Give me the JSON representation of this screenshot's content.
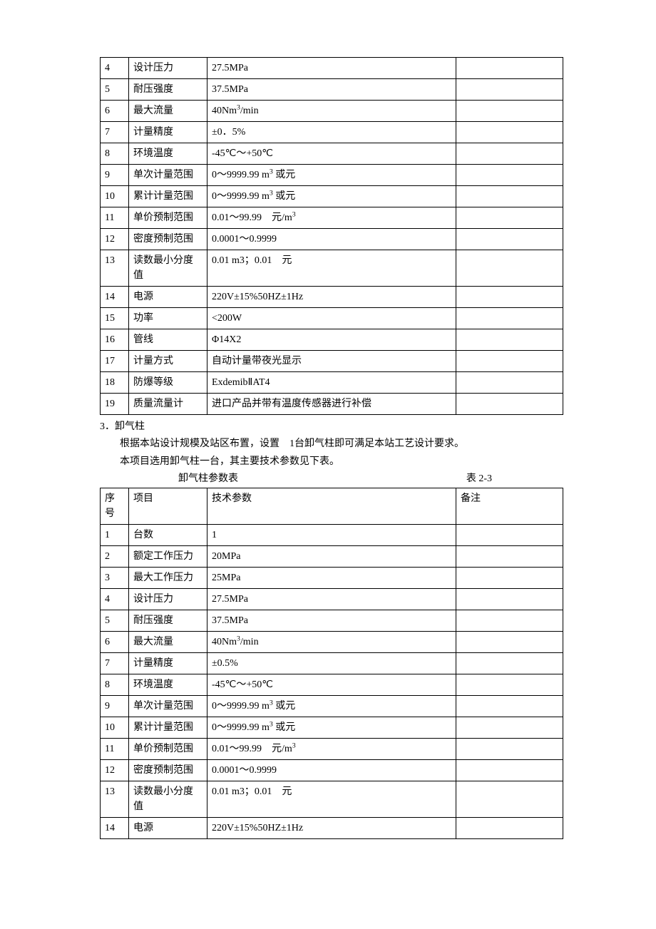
{
  "table1": {
    "columns": {
      "num_width": 40,
      "item_width": 110,
      "note_width": 150
    },
    "rows": [
      {
        "num": "4",
        "item": "设计压力",
        "param": "27.5MPa",
        "note": ""
      },
      {
        "num": "5",
        "item": "耐压强度",
        "param": "37.5MPa",
        "note": ""
      },
      {
        "num": "6",
        "item": "最大流量",
        "param_html": "40Nm<sup>3</sup>/min",
        "note": ""
      },
      {
        "num": "7",
        "item": "计量精度",
        "param": "±0．5%",
        "note": ""
      },
      {
        "num": "8",
        "item": "环境温度",
        "param": "-45℃～+50℃",
        "note": ""
      },
      {
        "num": "9",
        "item": "单次计量范围",
        "param_html": "0～9999.99 m<sup>3</sup> 或元",
        "note": ""
      },
      {
        "num": "10",
        "item": "累计计量范围",
        "param_html": "0～9999.99 m<sup>3</sup> 或元",
        "note": ""
      },
      {
        "num": "11",
        "item": "单价预制范围",
        "param_html": "0.01～99.99　元/m<sup>3</sup>",
        "note": ""
      },
      {
        "num": "12",
        "item": "密度预制范围",
        "param": "0.0001～0.9999",
        "note": ""
      },
      {
        "num": "13",
        "item": "读数最小分度值",
        "param": "0.01 m3；0.01　元",
        "note": ""
      },
      {
        "num": "14",
        "item": "电源",
        "param": "220V±15%50HZ±1Hz",
        "note": ""
      },
      {
        "num": "15",
        "item": "功率",
        "param": "<200W",
        "note": ""
      },
      {
        "num": "16",
        "item": "管线",
        "param": "Φ14X2",
        "note": ""
      },
      {
        "num": "17",
        "item": "计量方式",
        "param": "自动计量带夜光显示",
        "note": ""
      },
      {
        "num": "18",
        "item": "防爆等级",
        "param": "ExdemibⅡAT4",
        "note": ""
      },
      {
        "num": "19",
        "item": "质量流量计",
        "param": "进口产品并带有温度传感器进行补偿",
        "note": ""
      }
    ]
  },
  "section": {
    "title": "3．卸气柱",
    "para1": "根据本站设计规模及站区布置，设置　1台卸气柱即可满足本站工艺设计要求。",
    "para2": "本项目选用卸气柱一台，其主要技术参数见下表。",
    "caption_title": "卸气柱参数表",
    "caption_ref": "表 2-3"
  },
  "table2": {
    "header": {
      "num": "序号",
      "item": "项目",
      "param": "技术参数",
      "note": "备注"
    },
    "rows": [
      {
        "num": "1",
        "item": "台数",
        "param": "1",
        "note": ""
      },
      {
        "num": "2",
        "item": "额定工作压力",
        "param": "20MPa",
        "note": ""
      },
      {
        "num": "3",
        "item": "最大工作压力",
        "param": "25MPa",
        "note": ""
      },
      {
        "num": "4",
        "item": "设计压力",
        "param": "27.5MPa",
        "note": ""
      },
      {
        "num": "5",
        "item": "耐压强度",
        "param": "37.5MPa",
        "note": ""
      },
      {
        "num": "6",
        "item": "最大流量",
        "param_html": "40Nm<sup>3</sup>/min",
        "note": ""
      },
      {
        "num": "7",
        "item": "计量精度",
        "param": "±0.5%",
        "note": ""
      },
      {
        "num": "8",
        "item": "环境温度",
        "param": "-45℃～+50℃",
        "note": ""
      },
      {
        "num": "9",
        "item": "单次计量范围",
        "param_html": "0～9999.99 m<sup>3</sup> 或元",
        "note": ""
      },
      {
        "num": "10",
        "item": "累计计量范围",
        "param_html": "0～9999.99 m<sup>3</sup> 或元",
        "note": ""
      },
      {
        "num": "11",
        "item": "单价预制范围",
        "param_html": "0.01～99.99　元/m<sup>3</sup>",
        "note": ""
      },
      {
        "num": "12",
        "item": "密度预制范围",
        "param": "0.0001～0.9999",
        "note": ""
      },
      {
        "num": "13",
        "item": "读数最小分度值",
        "param": "0.01 m3；0.01　元",
        "note": ""
      },
      {
        "num": "14",
        "item": "电源",
        "param": "220V±15%50HZ±1Hz",
        "note": ""
      }
    ]
  }
}
